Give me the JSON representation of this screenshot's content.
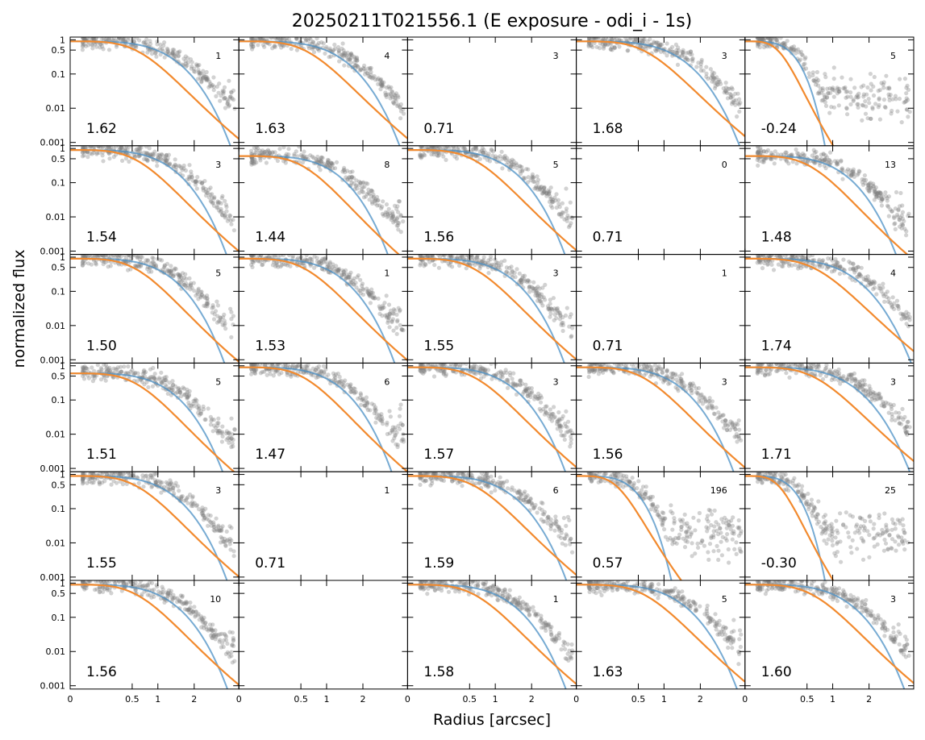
{
  "chart_data": {
    "type": "scatter",
    "title": "20250211T021556.1 (E exposure - odi_i - 1s)",
    "xlabel": "Radius [arcsec]",
    "ylabel": "normalized flux",
    "x_scale": "sqrt",
    "y_scale": "log",
    "xlim": [
      0,
      3.7
    ],
    "ylim": [
      0.0008,
      1.2
    ],
    "x_ticks": [
      0,
      0.5,
      1,
      2
    ],
    "y_ticks": [
      0.001,
      0.01,
      0.1,
      0.5,
      1
    ],
    "x_tick_labels": [
      "0",
      "0.5",
      "1",
      "2"
    ],
    "y_tick_labels": [
      "0.001",
      "0.01",
      "0.1",
      "0.5",
      "1"
    ],
    "grid": false,
    "colors": {
      "points": "#7f7f7f",
      "fit_blue": "#4a8fc4",
      "fit_orange": "#f28a2e"
    },
    "rows": 6,
    "cols": 5,
    "panels": [
      {
        "value": "1.62",
        "count": "1",
        "fwhm": 1.62
      },
      {
        "value": "1.63",
        "count": "4",
        "fwhm": 1.63
      },
      {
        "value": "0.71",
        "count": "3",
        "fwhm": 0.71,
        "empty": true
      },
      {
        "value": "1.68",
        "count": "3",
        "fwhm": 1.68
      },
      {
        "value": "-0.24",
        "count": "5",
        "fwhm": -0.24
      },
      {
        "value": "1.54",
        "count": "3",
        "fwhm": 1.54
      },
      {
        "value": "1.44",
        "count": "8",
        "fwhm": 1.44
      },
      {
        "value": "1.56",
        "count": "5",
        "fwhm": 1.56
      },
      {
        "value": "0.71",
        "count": "0",
        "fwhm": 0.71,
        "empty": true
      },
      {
        "value": "1.48",
        "count": "13",
        "fwhm": 1.48
      },
      {
        "value": "1.50",
        "count": "5",
        "fwhm": 1.5
      },
      {
        "value": "1.53",
        "count": "1",
        "fwhm": 1.53
      },
      {
        "value": "1.55",
        "count": "3",
        "fwhm": 1.55
      },
      {
        "value": "0.71",
        "count": "1",
        "fwhm": 0.71,
        "empty": true
      },
      {
        "value": "1.74",
        "count": "4",
        "fwhm": 1.74
      },
      {
        "value": "1.51",
        "count": "5",
        "fwhm": 1.51
      },
      {
        "value": "1.47",
        "count": "6",
        "fwhm": 1.47
      },
      {
        "value": "1.57",
        "count": "3",
        "fwhm": 1.57
      },
      {
        "value": "1.56",
        "count": "3",
        "fwhm": 1.56
      },
      {
        "value": "1.71",
        "count": "3",
        "fwhm": 1.71
      },
      {
        "value": "1.55",
        "count": "3",
        "fwhm": 1.55
      },
      {
        "value": "0.71",
        "count": "1",
        "fwhm": 0.71,
        "empty": true
      },
      {
        "value": "1.59",
        "count": "6",
        "fwhm": 1.59
      },
      {
        "value": "0.57",
        "count": "196",
        "fwhm": 0.57
      },
      {
        "value": "-0.30",
        "count": "25",
        "fwhm": -0.3
      },
      {
        "value": "1.56",
        "count": "10",
        "fwhm": 1.56
      },
      {
        "value": "",
        "count": "",
        "fwhm": null,
        "empty": true
      },
      {
        "value": "1.58",
        "count": "1",
        "fwhm": 1.58
      },
      {
        "value": "1.63",
        "count": "5",
        "fwhm": 1.63
      },
      {
        "value": "1.60",
        "count": "3",
        "fwhm": 1.6
      }
    ]
  }
}
